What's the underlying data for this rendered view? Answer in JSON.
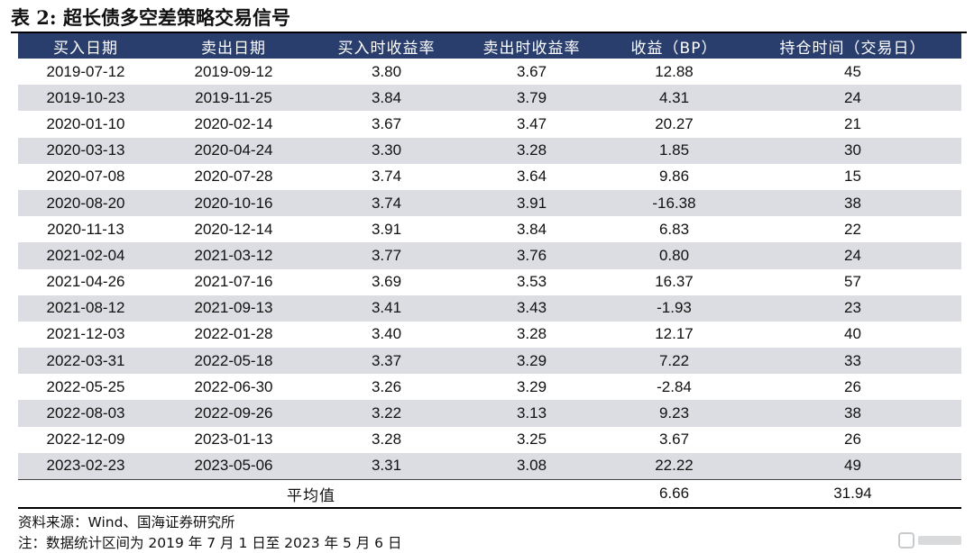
{
  "title": "表 2:  超长债多空差策略交易信号",
  "table": {
    "headers": [
      "买入日期",
      "卖出日期",
      "买入时收益率",
      "卖出时收益率",
      "收益（BP）",
      "持仓时间（交易日）"
    ],
    "rows": [
      [
        "2019-07-12",
        "2019-09-12",
        "3.80",
        "3.67",
        "12.88",
        "45"
      ],
      [
        "2019-10-23",
        "2019-11-25",
        "3.84",
        "3.79",
        "4.31",
        "24"
      ],
      [
        "2020-01-10",
        "2020-02-14",
        "3.67",
        "3.47",
        "20.27",
        "21"
      ],
      [
        "2020-03-13",
        "2020-04-24",
        "3.30",
        "3.28",
        "1.85",
        "30"
      ],
      [
        "2020-07-08",
        "2020-07-28",
        "3.74",
        "3.64",
        "9.86",
        "15"
      ],
      [
        "2020-08-20",
        "2020-10-16",
        "3.74",
        "3.91",
        "-16.38",
        "38"
      ],
      [
        "2020-11-13",
        "2020-12-14",
        "3.91",
        "3.84",
        "6.83",
        "22"
      ],
      [
        "2021-02-04",
        "2021-03-12",
        "3.77",
        "3.76",
        "0.80",
        "24"
      ],
      [
        "2021-04-26",
        "2021-07-16",
        "3.69",
        "3.53",
        "16.37",
        "57"
      ],
      [
        "2021-08-12",
        "2021-09-13",
        "3.41",
        "3.43",
        "-1.93",
        "23"
      ],
      [
        "2021-12-03",
        "2022-01-28",
        "3.40",
        "3.28",
        "12.17",
        "40"
      ],
      [
        "2022-03-31",
        "2022-05-18",
        "3.37",
        "3.29",
        "7.22",
        "33"
      ],
      [
        "2022-05-25",
        "2022-06-30",
        "3.26",
        "3.29",
        "-2.84",
        "26"
      ],
      [
        "2022-08-03",
        "2022-09-26",
        "3.22",
        "3.13",
        "9.23",
        "38"
      ],
      [
        "2022-12-09",
        "2023-01-13",
        "3.28",
        "3.25",
        "3.67",
        "26"
      ],
      [
        "2023-02-23",
        "2023-05-06",
        "3.31",
        "3.08",
        "22.22",
        "49"
      ]
    ],
    "average": {
      "label": "平均值",
      "return_bp": "6.66",
      "holding_days": "31.94"
    }
  },
  "source": "资料来源：Wind、国海证券研究所",
  "note": "注：数据统计区间为 2019 年 7 月 1 日至 2023 年 5 月 6 日",
  "watermark": {
    "icon": "platform-logo-icon"
  },
  "colors": {
    "header_bg": "#2a3e6e",
    "header_text": "#ffffff",
    "alt_row": "#dcdde2"
  }
}
